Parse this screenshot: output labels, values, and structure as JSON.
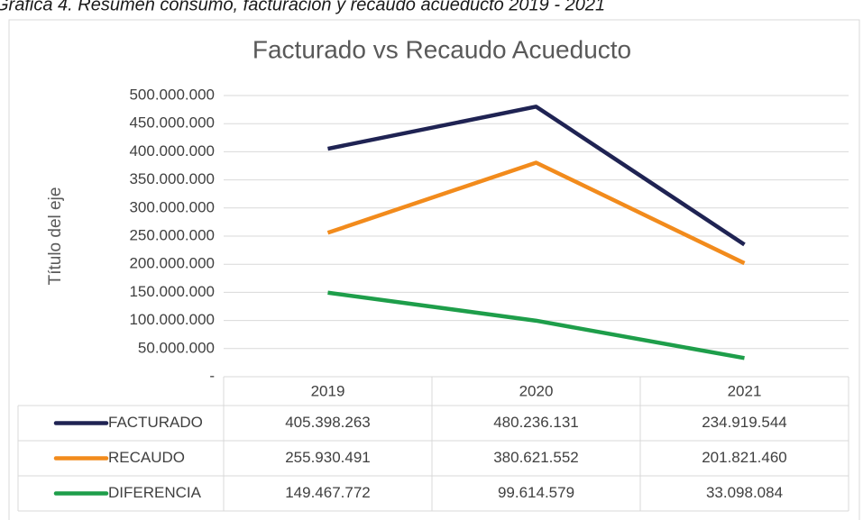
{
  "caption": "Gráfica 4. Resumen consumo, facturación y recaudo acueducto 2019 - 2021",
  "chart_data": {
    "type": "line",
    "title": "Facturado vs Recaudo Acueducto",
    "y_label": "Título del eje",
    "categories": [
      "2019",
      "2020",
      "2021"
    ],
    "series": [
      {
        "name": "FACTURADO",
        "color": "#1f2353",
        "values": [
          405398263,
          480236131,
          234919544
        ],
        "value_labels": [
          "405.398.263",
          "480.236.131",
          "234.919.544"
        ]
      },
      {
        "name": "RECAUDO",
        "color": "#f28b1c",
        "values": [
          255930491,
          380621552,
          201821460
        ],
        "value_labels": [
          "255.930.491",
          "380.621.552",
          "201.821.460"
        ]
      },
      {
        "name": "DIFERENCIA",
        "color": "#1e9e4a",
        "values": [
          149467772,
          99614579,
          33098084
        ],
        "value_labels": [
          "149.467.772",
          "99.614.579",
          "33.098.084"
        ]
      }
    ],
    "ylim": [
      0,
      500000000
    ],
    "yticks": [
      {
        "value": 0,
        "label": "-"
      },
      {
        "value": 50000000,
        "label": "50.000.000"
      },
      {
        "value": 100000000,
        "label": "100.000.000"
      },
      {
        "value": 150000000,
        "label": "150.000.000"
      },
      {
        "value": 200000000,
        "label": "200.000.000"
      },
      {
        "value": 250000000,
        "label": "250.000.000"
      },
      {
        "value": 300000000,
        "label": "300.000.000"
      },
      {
        "value": 350000000,
        "label": "350.000.000"
      },
      {
        "value": 400000000,
        "label": "400.000.000"
      },
      {
        "value": 450000000,
        "label": "450.000.000"
      },
      {
        "value": 500000000,
        "label": "500.000.000"
      }
    ],
    "grid": true,
    "legend": "table"
  }
}
